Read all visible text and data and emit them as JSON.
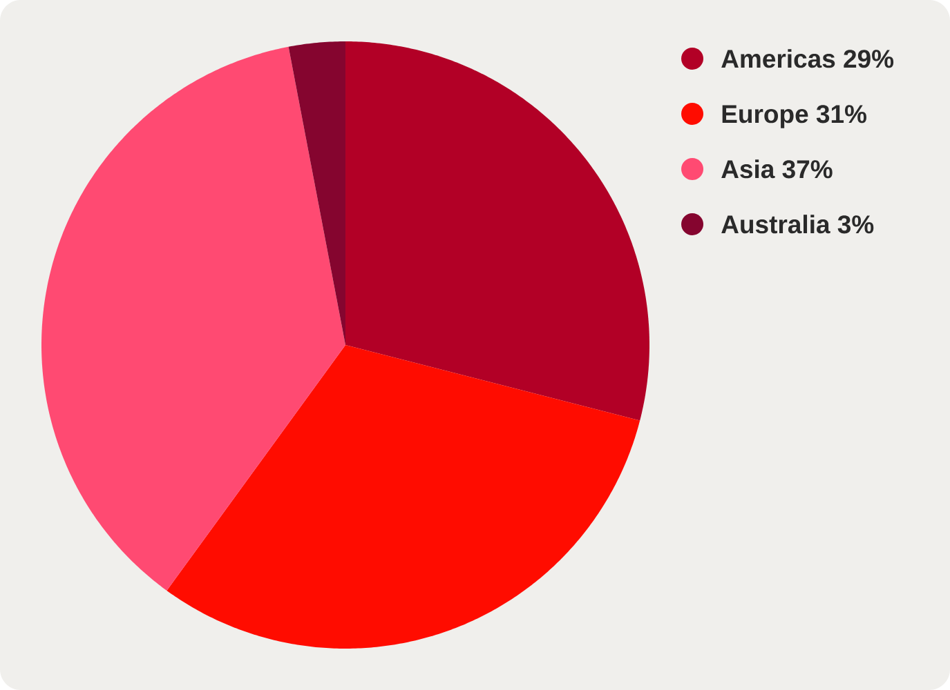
{
  "chart_data": {
    "type": "pie",
    "categories": [
      "Americas 29%",
      "Europe 31%",
      "Asia 37%",
      "Australia 3%"
    ],
    "values": [
      29,
      31,
      37,
      3
    ],
    "colors": [
      "#b20026",
      "#ff0c00",
      "#ff4a72",
      "#85052f"
    ],
    "legend": "top right"
  }
}
